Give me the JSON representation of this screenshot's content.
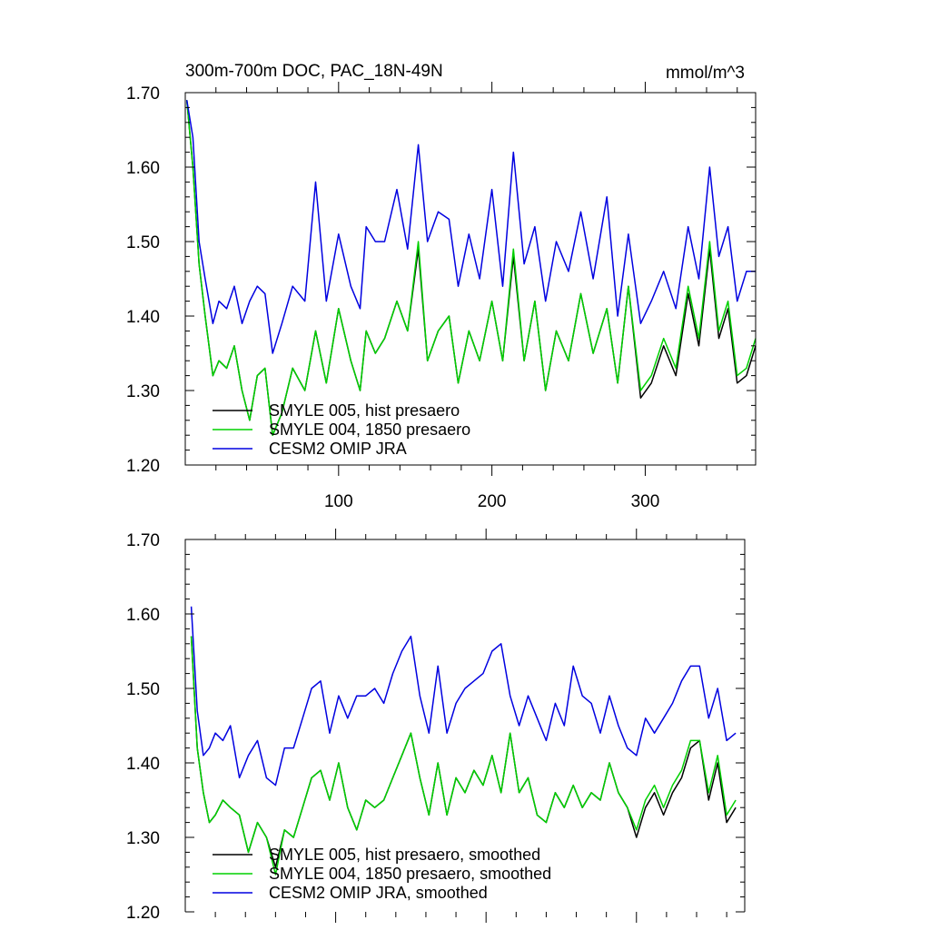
{
  "chart_data": [
    {
      "type": "line",
      "title": "300m-700m DOC, PAC_18N-49N",
      "units": "mmol/m^3",
      "xlim": [
        0,
        372
      ],
      "ylim": [
        1.2,
        1.7
      ],
      "x_ticks": [
        100,
        200,
        300
      ],
      "x_tick_labels": [
        "100",
        "200",
        "300"
      ],
      "y_ticks": [
        1.2,
        1.3,
        1.4,
        1.5,
        1.6,
        1.7
      ],
      "y_tick_labels": [
        "1.20",
        "1.30",
        "1.40",
        "1.50",
        "1.60",
        "1.70"
      ],
      "legend_position": "bottom-left",
      "series": [
        {
          "name": "SMYLE 005, hist presaero",
          "color": "#000000",
          "x": [
            1,
            5,
            9,
            13,
            18,
            22,
            27,
            32,
            37,
            42,
            47,
            52,
            57,
            63,
            70,
            78,
            85,
            92,
            100,
            108,
            114,
            118,
            124,
            130,
            138,
            145,
            152,
            158,
            165,
            172,
            178,
            185,
            192,
            200,
            207,
            214,
            221,
            228,
            235,
            242,
            250,
            258,
            266,
            275,
            282,
            289,
            297,
            304,
            312,
            320,
            328,
            335,
            342,
            348,
            354,
            360,
            366,
            372
          ],
          "y": [
            1.69,
            1.6,
            1.47,
            1.4,
            1.32,
            1.34,
            1.33,
            1.36,
            1.3,
            1.26,
            1.32,
            1.33,
            1.24,
            1.27,
            1.33,
            1.3,
            1.38,
            1.31,
            1.41,
            1.34,
            1.3,
            1.38,
            1.35,
            1.37,
            1.42,
            1.38,
            1.49,
            1.34,
            1.38,
            1.4,
            1.31,
            1.38,
            1.34,
            1.42,
            1.34,
            1.48,
            1.34,
            1.42,
            1.3,
            1.38,
            1.34,
            1.43,
            1.35,
            1.41,
            1.31,
            1.44,
            1.29,
            1.31,
            1.36,
            1.32,
            1.43,
            1.36,
            1.49,
            1.37,
            1.41,
            1.31,
            1.32,
            1.36
          ]
        },
        {
          "name": "SMYLE 004, 1850 presaero",
          "color": "#00d000",
          "x": [
            1,
            5,
            9,
            13,
            18,
            22,
            27,
            32,
            37,
            42,
            47,
            52,
            57,
            63,
            70,
            78,
            85,
            92,
            100,
            108,
            114,
            118,
            124,
            130,
            138,
            145,
            152,
            158,
            165,
            172,
            178,
            185,
            192,
            200,
            207,
            214,
            221,
            228,
            235,
            242,
            250,
            258,
            266,
            275,
            282,
            289,
            297,
            304,
            312,
            320,
            328,
            335,
            342,
            348,
            354,
            360,
            366,
            372
          ],
          "y": [
            1.69,
            1.6,
            1.47,
            1.4,
            1.32,
            1.34,
            1.33,
            1.36,
            1.3,
            1.26,
            1.32,
            1.33,
            1.24,
            1.27,
            1.33,
            1.3,
            1.38,
            1.31,
            1.41,
            1.34,
            1.3,
            1.38,
            1.35,
            1.37,
            1.42,
            1.38,
            1.5,
            1.34,
            1.38,
            1.4,
            1.31,
            1.38,
            1.34,
            1.42,
            1.34,
            1.49,
            1.34,
            1.42,
            1.3,
            1.38,
            1.34,
            1.43,
            1.35,
            1.41,
            1.31,
            1.44,
            1.3,
            1.32,
            1.37,
            1.33,
            1.44,
            1.37,
            1.5,
            1.38,
            1.42,
            1.32,
            1.33,
            1.37
          ]
        },
        {
          "name": "CESM2 OMIP JRA",
          "color": "#0000e0",
          "x": [
            1,
            5,
            9,
            13,
            18,
            22,
            27,
            32,
            37,
            42,
            47,
            52,
            57,
            63,
            70,
            78,
            85,
            92,
            100,
            108,
            114,
            118,
            124,
            130,
            138,
            145,
            152,
            158,
            165,
            172,
            178,
            185,
            192,
            200,
            207,
            214,
            221,
            228,
            235,
            242,
            250,
            258,
            266,
            275,
            282,
            289,
            297,
            304,
            312,
            320,
            328,
            335,
            342,
            348,
            354,
            360,
            366,
            372
          ],
          "y": [
            1.69,
            1.64,
            1.5,
            1.45,
            1.39,
            1.42,
            1.41,
            1.44,
            1.39,
            1.42,
            1.44,
            1.43,
            1.35,
            1.39,
            1.44,
            1.42,
            1.58,
            1.42,
            1.51,
            1.44,
            1.41,
            1.52,
            1.5,
            1.5,
            1.57,
            1.49,
            1.63,
            1.5,
            1.54,
            1.53,
            1.44,
            1.51,
            1.45,
            1.57,
            1.44,
            1.62,
            1.47,
            1.52,
            1.42,
            1.5,
            1.46,
            1.54,
            1.45,
            1.56,
            1.4,
            1.51,
            1.39,
            1.42,
            1.46,
            1.41,
            1.52,
            1.45,
            1.6,
            1.48,
            1.52,
            1.42,
            1.46,
            1.46
          ]
        }
      ]
    },
    {
      "type": "line",
      "title": "",
      "units": "",
      "xlim": [
        0,
        372
      ],
      "ylim": [
        1.2,
        1.7
      ],
      "x_ticks": [
        100,
        200,
        300
      ],
      "x_tick_labels": [],
      "y_ticks": [
        1.2,
        1.3,
        1.4,
        1.5,
        1.6,
        1.7
      ],
      "y_tick_labels": [
        "1.20",
        "1.30",
        "1.40",
        "1.50",
        "1.60",
        "1.70"
      ],
      "legend_position": "bottom-left",
      "series": [
        {
          "name": "SMYLE 005, hist presaero, smoothed",
          "color": "#000000",
          "x": [
            4,
            8,
            12,
            16,
            20,
            25,
            30,
            36,
            42,
            48,
            54,
            60,
            66,
            72,
            78,
            84,
            90,
            96,
            102,
            108,
            114,
            120,
            126,
            132,
            138,
            144,
            150,
            156,
            162,
            168,
            174,
            180,
            186,
            192,
            198,
            204,
            210,
            216,
            222,
            228,
            234,
            240,
            246,
            252,
            258,
            264,
            270,
            276,
            282,
            288,
            294,
            300,
            306,
            312,
            318,
            324,
            330,
            336,
            342,
            348,
            354,
            360,
            366
          ],
          "y": [
            1.57,
            1.42,
            1.36,
            1.32,
            1.33,
            1.35,
            1.34,
            1.33,
            1.28,
            1.32,
            1.3,
            1.26,
            1.31,
            1.3,
            1.34,
            1.38,
            1.39,
            1.35,
            1.4,
            1.34,
            1.31,
            1.35,
            1.34,
            1.35,
            1.38,
            1.41,
            1.44,
            1.38,
            1.33,
            1.4,
            1.33,
            1.38,
            1.36,
            1.39,
            1.37,
            1.41,
            1.36,
            1.44,
            1.36,
            1.38,
            1.33,
            1.32,
            1.36,
            1.34,
            1.37,
            1.34,
            1.36,
            1.35,
            1.4,
            1.36,
            1.34,
            1.3,
            1.34,
            1.36,
            1.33,
            1.36,
            1.38,
            1.42,
            1.43,
            1.35,
            1.4,
            1.32,
            1.34
          ]
        },
        {
          "name": "SMYLE 004, 1850 presaero, smoothed",
          "color": "#00d000",
          "x": [
            4,
            8,
            12,
            16,
            20,
            25,
            30,
            36,
            42,
            48,
            54,
            60,
            66,
            72,
            78,
            84,
            90,
            96,
            102,
            108,
            114,
            120,
            126,
            132,
            138,
            144,
            150,
            156,
            162,
            168,
            174,
            180,
            186,
            192,
            198,
            204,
            210,
            216,
            222,
            228,
            234,
            240,
            246,
            252,
            258,
            264,
            270,
            276,
            282,
            288,
            294,
            300,
            306,
            312,
            318,
            324,
            330,
            336,
            342,
            348,
            354,
            360,
            366
          ],
          "y": [
            1.57,
            1.42,
            1.36,
            1.32,
            1.33,
            1.35,
            1.34,
            1.33,
            1.28,
            1.32,
            1.3,
            1.25,
            1.31,
            1.3,
            1.34,
            1.38,
            1.39,
            1.35,
            1.4,
            1.34,
            1.31,
            1.35,
            1.34,
            1.35,
            1.38,
            1.41,
            1.44,
            1.38,
            1.33,
            1.4,
            1.33,
            1.38,
            1.36,
            1.39,
            1.37,
            1.41,
            1.36,
            1.44,
            1.36,
            1.38,
            1.33,
            1.32,
            1.36,
            1.34,
            1.37,
            1.34,
            1.36,
            1.35,
            1.4,
            1.36,
            1.34,
            1.31,
            1.35,
            1.37,
            1.34,
            1.37,
            1.39,
            1.43,
            1.43,
            1.36,
            1.41,
            1.33,
            1.35
          ]
        },
        {
          "name": "CESM2 OMIP JRA, smoothed",
          "color": "#0000e0",
          "x": [
            4,
            8,
            12,
            16,
            20,
            25,
            30,
            36,
            42,
            48,
            54,
            60,
            66,
            72,
            78,
            84,
            90,
            96,
            102,
            108,
            114,
            120,
            126,
            132,
            138,
            144,
            150,
            156,
            162,
            168,
            174,
            180,
            186,
            192,
            198,
            204,
            210,
            216,
            222,
            228,
            234,
            240,
            246,
            252,
            258,
            264,
            270,
            276,
            282,
            288,
            294,
            300,
            306,
            312,
            318,
            324,
            330,
            336,
            342,
            348,
            354,
            360,
            366
          ],
          "y": [
            1.61,
            1.47,
            1.41,
            1.42,
            1.44,
            1.43,
            1.45,
            1.38,
            1.41,
            1.43,
            1.38,
            1.37,
            1.42,
            1.42,
            1.46,
            1.5,
            1.51,
            1.44,
            1.49,
            1.46,
            1.49,
            1.49,
            1.5,
            1.48,
            1.52,
            1.55,
            1.57,
            1.49,
            1.44,
            1.53,
            1.44,
            1.48,
            1.5,
            1.51,
            1.52,
            1.55,
            1.56,
            1.49,
            1.45,
            1.49,
            1.46,
            1.43,
            1.48,
            1.45,
            1.53,
            1.49,
            1.48,
            1.44,
            1.49,
            1.45,
            1.42,
            1.41,
            1.46,
            1.44,
            1.46,
            1.48,
            1.51,
            1.53,
            1.53,
            1.46,
            1.5,
            1.43,
            1.44
          ]
        }
      ]
    }
  ]
}
